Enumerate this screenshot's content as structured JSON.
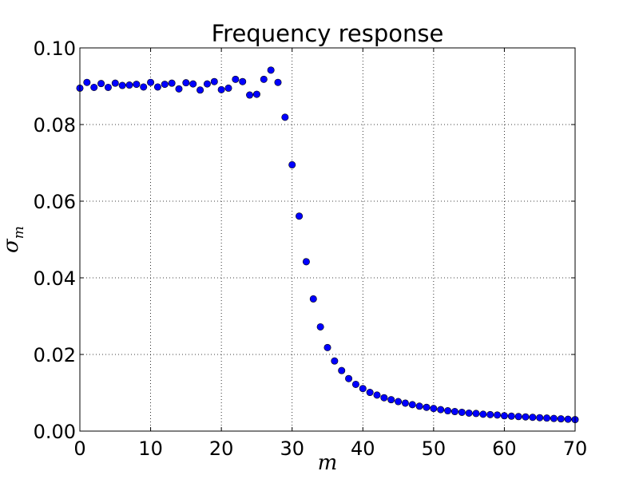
{
  "chart_data": {
    "type": "scatter",
    "title": "Frequency response",
    "xlabel": "m",
    "ylabel": "σ",
    "ylabel_subscript": "m",
    "xlim": [
      0,
      70
    ],
    "ylim": [
      0,
      0.1
    ],
    "x_ticks": [
      "0",
      "10",
      "20",
      "30",
      "40",
      "50",
      "60",
      "70"
    ],
    "y_ticks": [
      "0.00",
      "0.02",
      "0.04",
      "0.06",
      "0.08",
      "0.10"
    ],
    "grid": true,
    "legend": "none",
    "marker_color": "#0000ff",
    "series": [
      {
        "x": [
          0,
          1,
          2,
          3,
          4,
          5,
          6,
          7,
          8,
          9,
          10,
          11,
          12,
          13,
          14,
          15,
          16,
          17,
          18,
          19,
          20,
          21,
          22,
          23,
          24,
          25,
          26,
          27,
          28,
          29,
          30,
          31,
          32,
          33,
          34,
          35,
          36,
          37,
          38,
          39,
          40,
          41,
          42,
          43,
          44,
          45,
          46,
          47,
          48,
          49,
          50,
          51,
          52,
          53,
          54,
          55,
          56,
          57,
          58,
          59,
          60,
          61,
          62,
          63,
          64,
          65,
          66,
          67,
          68,
          69,
          70
        ],
        "values": [
          0.0895,
          0.091,
          0.0897,
          0.0907,
          0.0897,
          0.0908,
          0.0902,
          0.0903,
          0.0905,
          0.0898,
          0.091,
          0.0898,
          0.0905,
          0.0908,
          0.0893,
          0.0909,
          0.0906,
          0.089,
          0.0906,
          0.0912,
          0.0891,
          0.0895,
          0.0918,
          0.0912,
          0.0877,
          0.0879,
          0.0918,
          0.0942,
          0.091,
          0.0819,
          0.0695,
          0.0561,
          0.0442,
          0.0345,
          0.0272,
          0.0218,
          0.0183,
          0.0158,
          0.0137,
          0.0122,
          0.0111,
          0.0101,
          0.0094,
          0.0087,
          0.0082,
          0.0077,
          0.0073,
          0.0069,
          0.0065,
          0.0062,
          0.0059,
          0.0056,
          0.0053,
          0.0051,
          0.0049,
          0.0047,
          0.0046,
          0.0044,
          0.0043,
          0.0042,
          0.004,
          0.0039,
          0.0038,
          0.0037,
          0.0036,
          0.0035,
          0.0034,
          0.0033,
          0.0032,
          0.0031,
          0.003
        ]
      }
    ]
  }
}
